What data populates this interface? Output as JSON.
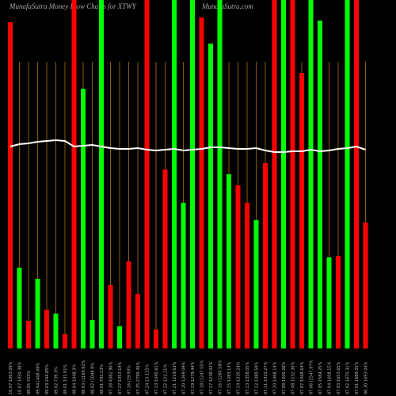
{
  "chart_data": {
    "type": "bar",
    "title": "MunafaSutra  Money  Flow  Charts for XTWY",
    "watermark": "MunafaSutra.com",
    "categories": [
      "10.07 1063.09%",
      "10.07 1050.38%",
      "09.05 723%",
      "09.04 (448.49%",
      "09.03 244.85%",
      "09.02 739.3%",
      "09.01 131.91%",
      "08.04 1048.3%",
      "08.03 (1169.92%",
      "08.02 (1048.9%",
      "08.01 792.23%",
      "07.28 4382.96%",
      "07.27 1353.14%",
      "07.26 (19.93%",
      "07.25 2790.36%",
      "07.24 13.115%",
      "07.23 1040.61%",
      "07.22 122.21%",
      "07.21 1219.63%",
      "07.20 1269.09%",
      "07.19 1279.44%",
      "07.18 (1247.55%",
      "07.17 1238.02%",
      "07.16 (1260.58%",
      "07.15 1283.13%",
      "07.14 1330.24%",
      "07.13 1358.05%",
      "07.12 1380.59%",
      "07.11 1410.27%",
      "07.10 1468.14%",
      "07.09 1500.28%",
      "07.08 1532.36%",
      "07.07 1568.64%",
      "07.06 (1547.97%",
      "07.05 1584.25%",
      "07.04 1608.15%",
      "07.03 1653.65%",
      "07.02 1670.31%",
      "07.01 1689.05%",
      "06.30 1693.04%"
    ],
    "values": [
      412,
      102,
      35,
      88,
      49,
      44,
      18,
      440,
      328,
      36,
      440,
      80,
      28,
      110,
      69,
      440,
      24,
      226,
      440,
      184,
      440,
      418,
      385,
      440,
      220,
      206,
      184,
      162,
      234,
      440,
      440,
      440,
      348,
      440,
      414,
      115,
      117,
      440,
      440,
      159
    ],
    "colors": [
      "#ff0000",
      "#00ff00",
      "#ff0000",
      "#00ff00",
      "#ff0000",
      "#00ff00",
      "#ff0000",
      "#ff0000",
      "#00ff00",
      "#00ff00",
      "#00ff00",
      "#ff0000",
      "#00ff00",
      "#ff0000",
      "#ff0000",
      "#ff0000",
      "#ff0000",
      "#ff0000",
      "#00ff00",
      "#00ff00",
      "#00ff00",
      "#ff0000",
      "#00ff00",
      "#00ff00",
      "#00ff00",
      "#ff0000",
      "#ff0000",
      "#00ff00",
      "#ff0000",
      "#ff0000",
      "#00ff00",
      "#ff0000",
      "#ff0000",
      "#00ff00",
      "#00ff00",
      "#00ff00",
      "#ff0000",
      "#00ff00",
      "#ff0000",
      "#ff0000"
    ],
    "line": {
      "color": "#ffffff",
      "values": [
        255,
        258,
        259,
        261,
        262,
        263,
        262,
        255,
        256,
        257,
        255,
        253,
        252,
        252,
        253,
        251,
        250,
        251,
        252,
        250,
        251,
        252,
        254,
        254,
        253,
        252,
        252,
        253,
        250,
        248,
        248,
        249,
        249,
        251,
        249,
        250,
        252,
        253,
        255,
        251
      ]
    },
    "ylim": [
      0,
      440
    ]
  }
}
